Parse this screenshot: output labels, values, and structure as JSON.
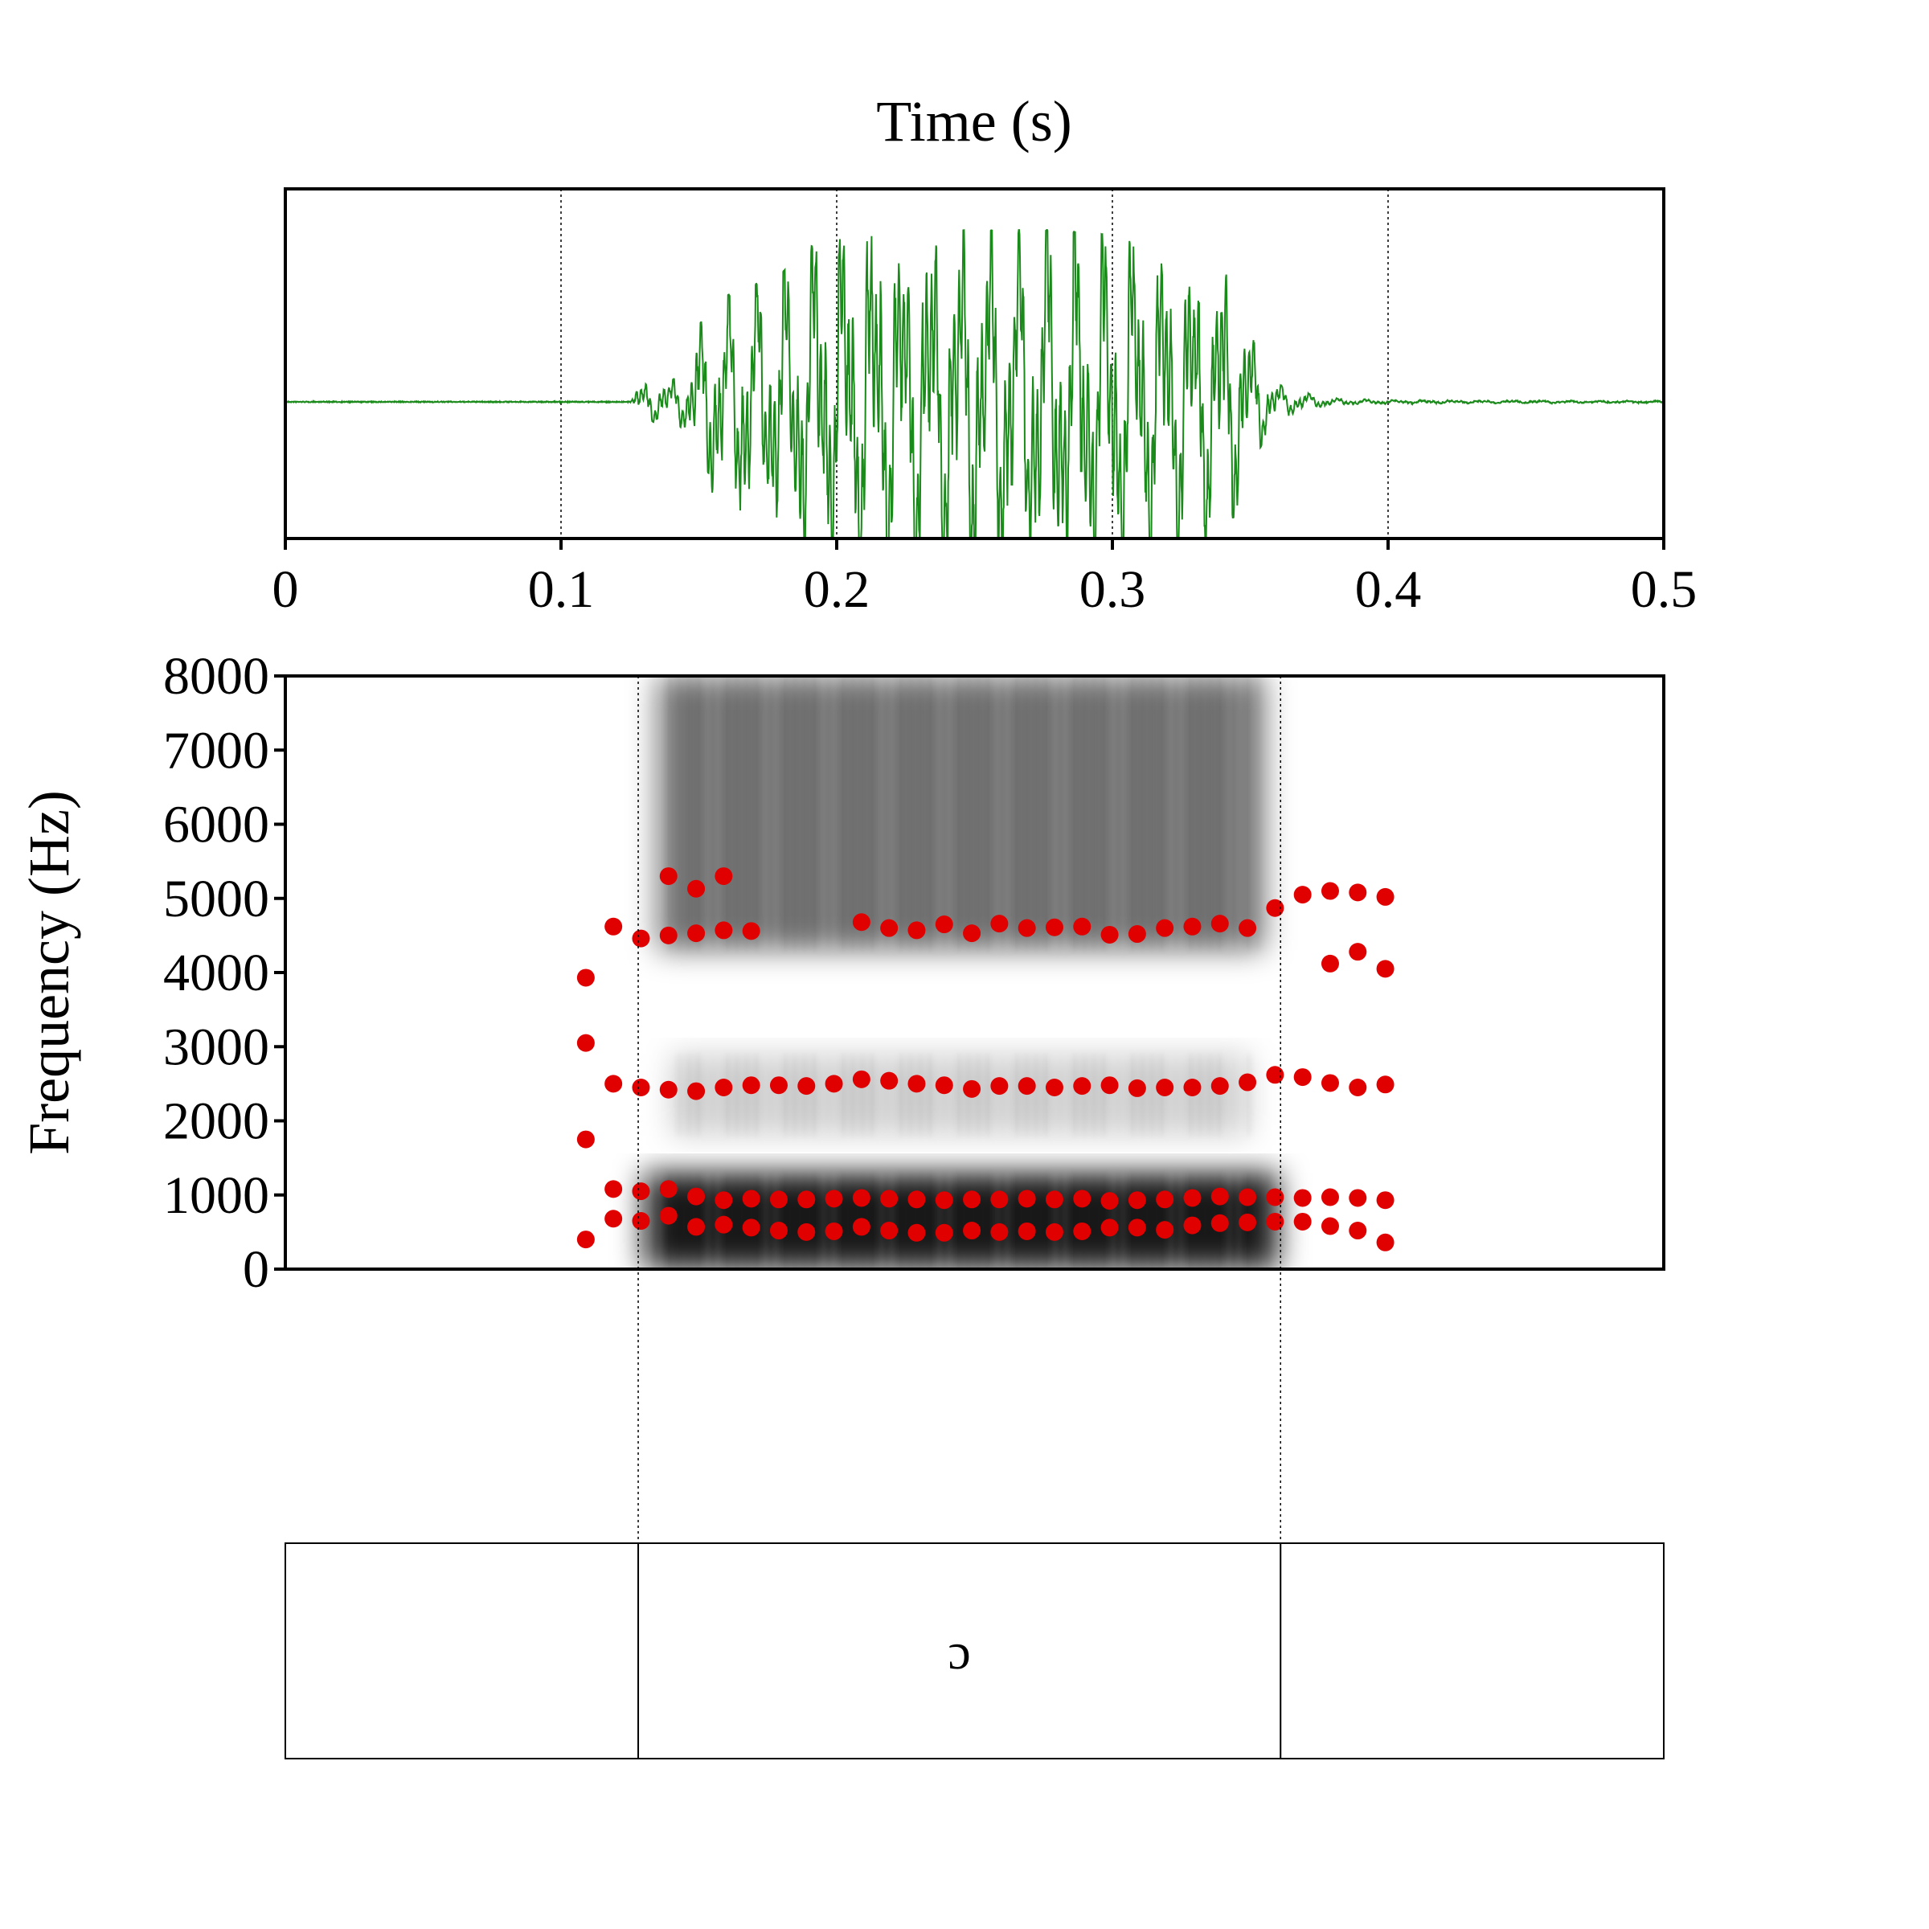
{
  "chart_data": [
    {
      "type": "line",
      "title": "",
      "xlabel": "Time (s)",
      "ylabel": "",
      "xlim": [
        0,
        0.5
      ],
      "x_ticks": [
        "0",
        "0.1",
        "0.2",
        "0.3",
        "0.4",
        "0.5"
      ],
      "x_tick_values": [
        0,
        0.1,
        0.2,
        0.3,
        0.4,
        0.5
      ],
      "grid": "vertical dotted at 0.1 s steps",
      "series": [
        {
          "waveform_envelope": {
            "t": [
              0.0,
              0.125,
              0.128,
              0.135,
              0.145,
              0.15,
              0.16,
              0.17,
              0.18,
              0.19,
              0.2,
              0.21,
              0.22,
              0.24,
              0.26,
              0.28,
              0.3,
              0.31,
              0.32,
              0.33,
              0.34,
              0.345,
              0.35,
              0.355,
              0.36,
              0.37,
              0.38,
              0.4,
              0.5
            ],
            "amplitude": [
              0.0,
              0.0,
              0.1,
              0.12,
              0.15,
              0.45,
              0.62,
              0.68,
              0.75,
              0.9,
              0.97,
              1.0,
              1.0,
              1.0,
              1.0,
              1.0,
              0.97,
              0.92,
              0.87,
              0.83,
              0.78,
              0.64,
              0.4,
              0.22,
              0.1,
              0.05,
              0.02,
              0.01,
              0.005
            ]
          }
        }
      ],
      "colors": {
        "waveform": "#1a8a1a"
      }
    },
    {
      "type": "scatter",
      "title": "",
      "xlabel": "",
      "ylabel": "Frequency (Hz)",
      "xlim": [
        0,
        0.5
      ],
      "ylim": [
        0,
        8000
      ],
      "y_ticks": [
        "0",
        "1000",
        "2000",
        "3000",
        "4000",
        "5000",
        "6000",
        "7000",
        "8000"
      ],
      "y_tick_values": [
        0,
        1000,
        2000,
        3000,
        4000,
        5000,
        6000,
        7000,
        8000
      ],
      "colors": {
        "points": "#e00000",
        "spectrogram": "#000000"
      },
      "spectrogram_regions": [
        {
          "t": [
            0.135,
            0.355
          ],
          "f": [
            4300,
            8000
          ],
          "intensity": 0.55
        },
        {
          "t": [
            0.14,
            0.35
          ],
          "f": [
            1800,
            2900
          ],
          "intensity": 0.18
        },
        {
          "t": [
            0.13,
            0.36
          ],
          "f": [
            0,
            1300
          ],
          "intensity": 0.9
        }
      ],
      "series": [
        {
          "x": [
            0.109,
            0.109,
            0.109,
            0.109,
            0.119,
            0.119,
            0.119,
            0.119,
            0.129,
            0.129,
            0.129,
            0.129,
            0.139,
            0.139,
            0.139,
            0.139,
            0.149,
            0.149,
            0.149,
            0.149,
            0.159,
            0.159,
            0.159,
            0.159,
            0.169,
            0.169,
            0.169,
            0.169,
            0.179,
            0.179,
            0.179,
            0.189,
            0.189,
            0.189,
            0.199,
            0.199,
            0.199,
            0.209,
            0.209,
            0.209,
            0.209,
            0.219,
            0.219,
            0.219,
            0.219,
            0.229,
            0.229,
            0.229,
            0.229,
            0.239,
            0.239,
            0.239,
            0.239,
            0.249,
            0.249,
            0.249,
            0.249,
            0.259,
            0.259,
            0.259,
            0.259,
            0.269,
            0.269,
            0.269,
            0.269,
            0.279,
            0.279,
            0.279,
            0.279,
            0.289,
            0.289,
            0.289,
            0.289,
            0.299,
            0.299,
            0.299,
            0.299,
            0.309,
            0.309,
            0.309,
            0.309,
            0.319,
            0.319,
            0.319,
            0.319,
            0.329,
            0.329,
            0.329,
            0.329,
            0.339,
            0.339,
            0.339,
            0.339,
            0.349,
            0.349,
            0.349,
            0.349,
            0.359,
            0.359,
            0.359,
            0.359,
            0.369,
            0.369,
            0.369,
            0.369,
            0.379,
            0.379,
            0.379,
            0.379,
            0.379,
            0.389,
            0.389,
            0.389,
            0.389,
            0.389,
            0.399,
            0.399,
            0.399,
            0.399,
            0.399
          ],
          "y": [
            400,
            1750,
            3050,
            3930,
            680,
            1080,
            2500,
            4620,
            650,
            1050,
            2450,
            4460,
            720,
            1080,
            2420,
            4500,
            570,
            980,
            2400,
            4530,
            600,
            930,
            2450,
            4570,
            560,
            950,
            2480,
            4560,
            520,
            940,
            2480,
            500,
            940,
            2470,
            510,
            950,
            2500,
            570,
            960,
            2560,
            4680,
            520,
            950,
            2540,
            4600,
            490,
            940,
            2500,
            4570,
            490,
            930,
            2480,
            4650,
            520,
            940,
            2430,
            4530,
            500,
            940,
            2470,
            4660,
            510,
            950,
            2470,
            4600,
            500,
            940,
            2450,
            4610,
            510,
            950,
            2470,
            4620,
            560,
            920,
            2480,
            4510,
            560,
            930,
            2440,
            4520,
            530,
            940,
            2450,
            4600,
            590,
            960,
            2450,
            4620,
            620,
            980,
            2470,
            4660,
            630,
            970,
            2520,
            4600,
            640,
            970,
            2620,
            4870,
            640,
            960,
            2590,
            5050,
            580,
            970,
            2510,
            4120,
            5100,
            520,
            960,
            2450,
            4280,
            5080,
            360,
            930,
            2490,
            4050,
            5020
          ]
        },
        {
          "x": [
            0.139,
            0.149,
            0.159
          ],
          "y": [
            5300,
            5130,
            5300
          ]
        }
      ]
    }
  ],
  "textgrid": {
    "boundaries_s": [
      0.128,
      0.361
    ],
    "intervals": [
      {
        "label": ""
      },
      {
        "label": "ɔ"
      },
      {
        "label": ""
      }
    ]
  }
}
